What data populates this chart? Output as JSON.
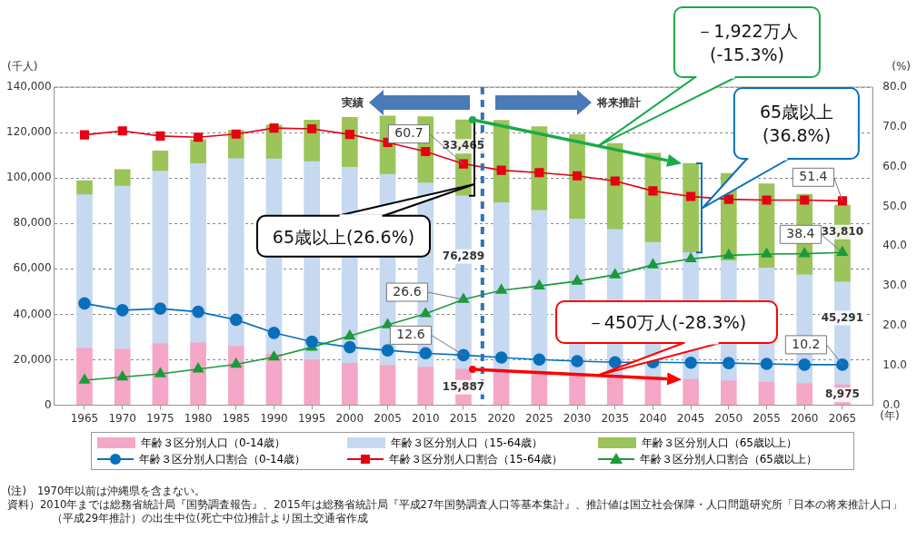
{
  "chart_data": {
    "type": "bar",
    "stacked": true,
    "ylabel": "(千人)",
    "y2label": "(%)",
    "xlabel": "(年)",
    "x": [
      1965,
      1970,
      1975,
      1980,
      1985,
      1990,
      1995,
      2000,
      2005,
      2010,
      2015,
      2020,
      2025,
      2030,
      2035,
      2040,
      2045,
      2050,
      2055,
      2060,
      2065
    ],
    "xlim": [
      1961,
      2069
    ],
    "xticks": [
      1965,
      1970,
      1975,
      1980,
      1985,
      1990,
      1995,
      2000,
      2005,
      2010,
      2015,
      2020,
      2025,
      2030,
      2035,
      2040,
      2045,
      2050,
      2055,
      2060,
      2065
    ],
    "ylim": [
      0,
      140000
    ],
    "yticks": [
      {
        "value": 0,
        "label": "0"
      },
      {
        "value": 20000,
        "label": "20,000"
      },
      {
        "value": 40000,
        "label": "40,000"
      },
      {
        "value": 60000,
        "label": "60,000"
      },
      {
        "value": 80000,
        "label": "80,000"
      },
      {
        "value": 100000,
        "label": "100,000"
      },
      {
        "value": 120000,
        "label": "120,000"
      },
      {
        "value": 140000,
        "label": "140,000"
      }
    ],
    "y2lim": [
      0,
      80
    ],
    "y2ticks": [
      {
        "value": 0,
        "label": "0.0"
      },
      {
        "value": 10,
        "label": "10.0"
      },
      {
        "value": 20,
        "label": "20.0"
      },
      {
        "value": 30,
        "label": "30.0"
      },
      {
        "value": 40,
        "label": "40.0"
      },
      {
        "value": 50,
        "label": "50.0"
      },
      {
        "value": 60,
        "label": "60.0"
      },
      {
        "value": 70,
        "label": "70.0"
      },
      {
        "value": 80,
        "label": "80.0"
      }
    ],
    "grid": "y",
    "legend": "bottom",
    "series": [
      {
        "name": "年齢３区分別人口（0-14歳）",
        "color": "#f4a7c6",
        "values": [
          25200,
          24800,
          27200,
          27500,
          26000,
          22500,
          20000,
          18500,
          17500,
          16800,
          15887,
          15100,
          14100,
          13200,
          12500,
          11900,
          11400,
          10800,
          10100,
          9500,
          8975
        ],
        "value_labels": [
          null,
          null,
          null,
          null,
          null,
          null,
          null,
          null,
          null,
          null,
          "15,887",
          null,
          null,
          null,
          null,
          null,
          null,
          null,
          null,
          null,
          "8,975"
        ]
      },
      {
        "name": "年齢３区分別人口（15-64歳）",
        "color": "#c6d9f1",
        "values": [
          67400,
          71600,
          75800,
          78800,
          82500,
          85900,
          87200,
          86200,
          84100,
          81000,
          76289,
          74100,
          71700,
          68800,
          64900,
          59800,
          55800,
          52800,
          50300,
          47900,
          45291
        ],
        "value_labels": [
          null,
          null,
          null,
          null,
          null,
          null,
          null,
          null,
          null,
          null,
          "76,289",
          null,
          null,
          null,
          null,
          null,
          null,
          null,
          null,
          null,
          "45,291"
        ]
      },
      {
        "name": "年齢３区分別人口（65歳以上）",
        "color": "#9bc45a",
        "values": [
          6200,
          7300,
          8900,
          10600,
          12500,
          14900,
          18300,
          22000,
          25700,
          29200,
          33465,
          36200,
          36800,
          37200,
          37800,
          39200,
          39200,
          38400,
          37000,
          35400,
          33810
        ],
        "value_labels": [
          null,
          null,
          null,
          null,
          null,
          null,
          null,
          null,
          null,
          null,
          "33,465",
          null,
          null,
          null,
          null,
          null,
          null,
          null,
          null,
          null,
          "33,810"
        ]
      },
      {
        "name": "年齢３区分別人口割合（0-14歳）",
        "type": "line",
        "axis": "y2",
        "marker": "circle",
        "color": "#0a6fba",
        "values": [
          25.6,
          23.9,
          24.3,
          23.5,
          21.5,
          18.2,
          16.0,
          14.6,
          13.8,
          13.1,
          12.6,
          12.0,
          11.5,
          11.1,
          10.8,
          10.8,
          10.7,
          10.6,
          10.4,
          10.2,
          10.2
        ],
        "value_labels": [
          null,
          null,
          null,
          null,
          null,
          null,
          null,
          null,
          null,
          null,
          "12.6",
          null,
          null,
          null,
          null,
          null,
          null,
          null,
          null,
          null,
          "10.2"
        ]
      },
      {
        "name": "年齢３区分別人口割合（15-64歳）",
        "type": "line",
        "axis": "y2",
        "marker": "square",
        "color": "#e60012",
        "values": [
          68.0,
          69.0,
          67.7,
          67.4,
          68.2,
          69.7,
          69.5,
          68.1,
          66.1,
          63.8,
          60.7,
          59.1,
          58.5,
          57.7,
          56.4,
          53.9,
          52.5,
          51.8,
          51.6,
          51.6,
          51.4
        ],
        "value_labels": [
          null,
          null,
          null,
          null,
          null,
          null,
          null,
          null,
          null,
          null,
          "60.7",
          null,
          null,
          null,
          null,
          null,
          null,
          null,
          null,
          null,
          "51.4"
        ]
      },
      {
        "name": "年齢３区分別人口割合（65歳以上）",
        "type": "line",
        "axis": "y2",
        "marker": "triangle",
        "color": "#1a9a3c",
        "values": [
          6.3,
          7.1,
          7.9,
          9.1,
          10.3,
          12.1,
          14.6,
          17.4,
          20.2,
          23.0,
          26.6,
          28.9,
          30.0,
          31.2,
          32.8,
          35.3,
          36.8,
          37.7,
          38.0,
          38.1,
          38.4
        ],
        "value_labels": [
          null,
          null,
          null,
          null,
          null,
          null,
          null,
          null,
          null,
          null,
          "26.6",
          null,
          null,
          null,
          null,
          null,
          null,
          null,
          null,
          null,
          "38.4"
        ]
      }
    ],
    "ref_lines": [
      {
        "axis": "x",
        "value": 2017.5,
        "color": "#2e75b6",
        "line_style": "dashed"
      }
    ],
    "annotations": [
      "実績",
      "将来推計",
      "65歳以上(26.6%)",
      "－1,922万人\n(-15.3%)",
      "65歳以上\n(36.8%)",
      "－450万人(-28.3%)",
      "(注)　1970年以前は沖縄県を含まない。",
      "資料）2010年までは総務省統計局『国勢調査報告』、2015年は総務省統計局『平成27年国勢調査人口等基本集計』、推計値は国立社会保障・人口問題研究所「日本の将来推計人口」（平成29年推計）の出生中位(死亡中位)推計より国土交通省作成"
    ]
  }
}
